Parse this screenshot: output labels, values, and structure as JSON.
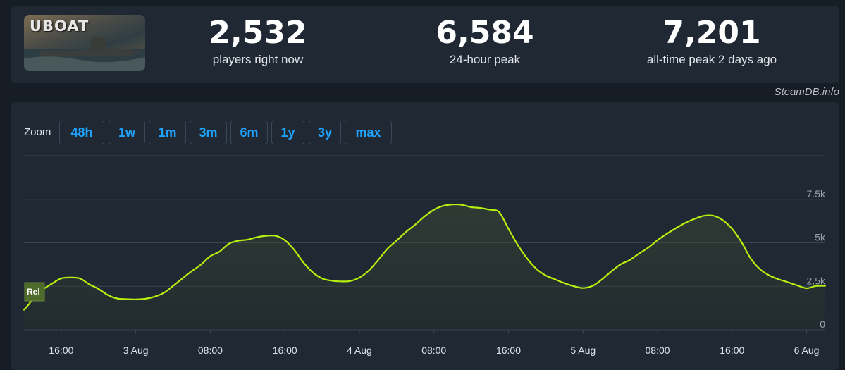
{
  "header": {
    "logo_text": "UBOAT",
    "stats": [
      {
        "value": "2,532",
        "label": "players right now"
      },
      {
        "value": "6,584",
        "label": "24-hour peak"
      },
      {
        "value": "7,201",
        "label": "all-time peak 2 days ago"
      }
    ]
  },
  "watermark": "SteamDB.info",
  "zoom": {
    "label": "Zoom",
    "buttons": [
      "48h",
      "1w",
      "1m",
      "3m",
      "6m",
      "1y",
      "3y",
      "max"
    ]
  },
  "colors": {
    "line": "#b7f00f",
    "grid": "#3a4552",
    "accent": "#1fa3ff"
  },
  "chart_data": {
    "type": "line",
    "y_ticks": [
      "7.5k",
      "5k",
      "2.5k",
      "0"
    ],
    "ylim": [
      0,
      10000
    ],
    "x_ticks": [
      "16:00",
      "3 Aug",
      "08:00",
      "16:00",
      "4 Aug",
      "08:00",
      "16:00",
      "5 Aug",
      "08:00",
      "16:00",
      "6 Aug"
    ],
    "x_unit": "hours since 2 Aug 12:00",
    "x_range": [
      12,
      98
    ],
    "annotation": "Rel",
    "series": [
      {
        "x": [
          12,
          12.5,
          13,
          14,
          15,
          16,
          17,
          18,
          19,
          20,
          21,
          22,
          23,
          24,
          25,
          26,
          27,
          28,
          29,
          30,
          31,
          32,
          33,
          34,
          35,
          36,
          37,
          38,
          39,
          40,
          41,
          42,
          43,
          44,
          45,
          46,
          47,
          48,
          49,
          50,
          51,
          52,
          53,
          54,
          55,
          56,
          57,
          58,
          59,
          60,
          61,
          62,
          63,
          64,
          65,
          66,
          67,
          68,
          69,
          70,
          71,
          72,
          73,
          74,
          75,
          76,
          77,
          78,
          79,
          80,
          81,
          82,
          83,
          84,
          85,
          86,
          87,
          88,
          89,
          90,
          91,
          92,
          93,
          94,
          95,
          96,
          97,
          98
        ],
        "y": [
          1150,
          1450,
          1800,
          2300,
          2650,
          2950,
          3000,
          2950,
          2620,
          2350,
          2000,
          1800,
          1760,
          1750,
          1780,
          1900,
          2120,
          2520,
          2950,
          3370,
          3750,
          4230,
          4500,
          4950,
          5120,
          5180,
          5320,
          5400,
          5400,
          5150,
          4600,
          3870,
          3300,
          2950,
          2820,
          2780,
          2800,
          3000,
          3400,
          4000,
          4650,
          5130,
          5630,
          6050,
          6520,
          6900,
          7120,
          7200,
          7180,
          7050,
          7000,
          6900,
          6760,
          5800,
          4880,
          4100,
          3500,
          3120,
          2900,
          2680,
          2510,
          2400,
          2520,
          2880,
          3340,
          3750,
          4010,
          4380,
          4720,
          5150,
          5520,
          5850,
          6150,
          6380,
          6550,
          6550,
          6300,
          5800,
          5050,
          4100,
          3480,
          3120,
          2900,
          2730,
          2550,
          2390,
          2520,
          2530
        ]
      }
    ]
  }
}
